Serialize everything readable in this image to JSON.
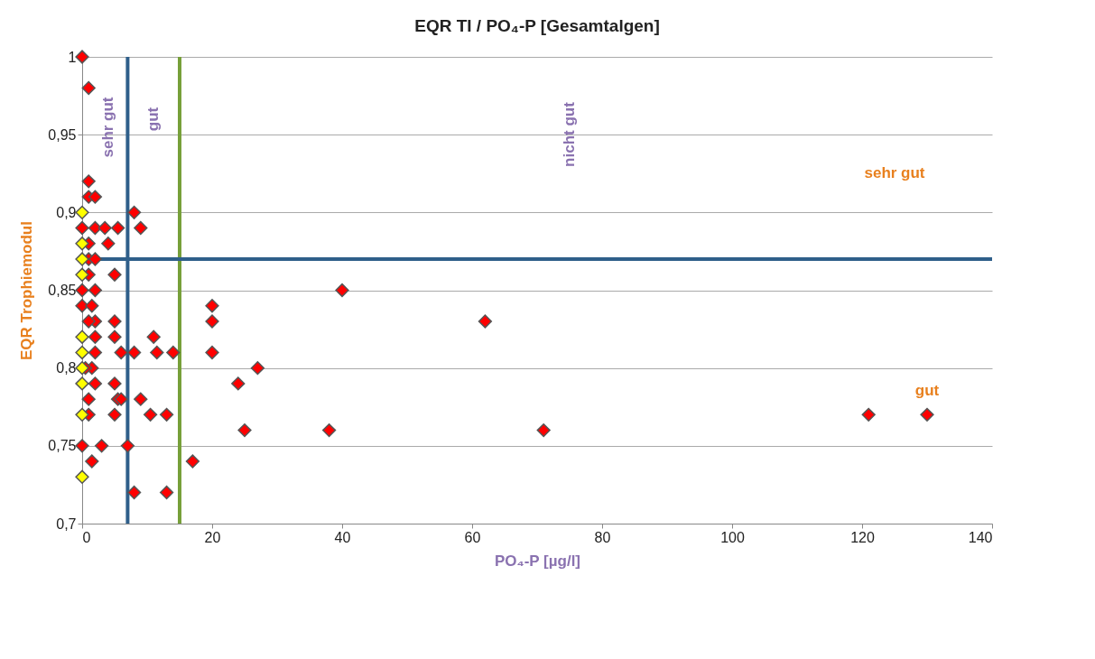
{
  "chart_data": {
    "type": "scatter",
    "title": "EQR TI / PO₄-P  [Gesamtalgen]",
    "xlabel": "PO₄-P [µg/l]",
    "ylabel": "EQR Trophiemodul",
    "xlim": [
      0,
      140
    ],
    "xticks": [
      0,
      20,
      40,
      60,
      80,
      100,
      120,
      140
    ],
    "ylim": [
      0.7,
      1
    ],
    "yticks": [
      {
        "value": 0.7,
        "label": "0,7"
      },
      {
        "value": 0.75,
        "label": "0,75"
      },
      {
        "value": 0.8,
        "label": "0,8"
      },
      {
        "value": 0.85,
        "label": "0,85"
      },
      {
        "value": 0.9,
        "label": "0,9"
      },
      {
        "value": 0.95,
        "label": "0,95"
      },
      {
        "value": 1,
        "label": "1"
      }
    ],
    "grid": "y",
    "legend": false,
    "marker": "diamond",
    "series": [
      {
        "color": "#ff0000",
        "x": [
          0,
          1,
          1,
          1,
          2,
          0,
          2,
          3.5,
          5.5,
          8,
          9,
          4,
          1,
          1,
          2,
          1,
          5,
          0,
          2,
          0,
          1.5,
          2,
          1,
          5,
          2,
          5,
          6,
          8,
          11,
          11.5,
          14,
          2,
          1.5,
          0.5,
          2,
          5,
          5.5,
          6,
          9,
          1,
          5,
          10.5,
          13,
          1,
          0,
          3,
          7,
          1.5,
          8,
          13,
          17,
          20,
          20,
          20,
          24,
          27,
          25,
          38,
          40,
          62,
          71,
          121,
          130
        ],
        "values": [
          1,
          0.98,
          0.92,
          0.91,
          0.91,
          0.89,
          0.89,
          0.89,
          0.89,
          0.9,
          0.89,
          0.88,
          0.88,
          0.87,
          0.87,
          0.86,
          0.86,
          0.85,
          0.85,
          0.84,
          0.84,
          0.83,
          0.83,
          0.83,
          0.82,
          0.82,
          0.81,
          0.81,
          0.82,
          0.81,
          0.81,
          0.81,
          0.8,
          0.8,
          0.79,
          0.79,
          0.78,
          0.78,
          0.78,
          0.78,
          0.77,
          0.77,
          0.77,
          0.77,
          0.75,
          0.75,
          0.75,
          0.74,
          0.72,
          0.72,
          0.74,
          0.84,
          0.83,
          0.81,
          0.79,
          0.8,
          0.76,
          0.76,
          0.85,
          0.83,
          0.76,
          0.77,
          0.77
        ]
      },
      {
        "color": "#ffff00",
        "x": [
          0,
          0,
          0,
          0,
          0,
          0,
          0,
          0,
          0,
          0
        ],
        "values": [
          0.9,
          0.88,
          0.87,
          0.86,
          0.82,
          0.81,
          0.8,
          0.79,
          0.77,
          0.73
        ]
      }
    ],
    "ref_lines": [
      {
        "axis": "x",
        "value": 7,
        "color": "#2f5f8a"
      },
      {
        "axis": "x",
        "value": 15,
        "color": "#77a03a"
      },
      {
        "axis": "y",
        "value": 0.87,
        "color": "#2f5f8a"
      }
    ],
    "annotations": [
      "sehr gut",
      "gut",
      "nicht gut",
      "sehr gut",
      "gut"
    ]
  }
}
